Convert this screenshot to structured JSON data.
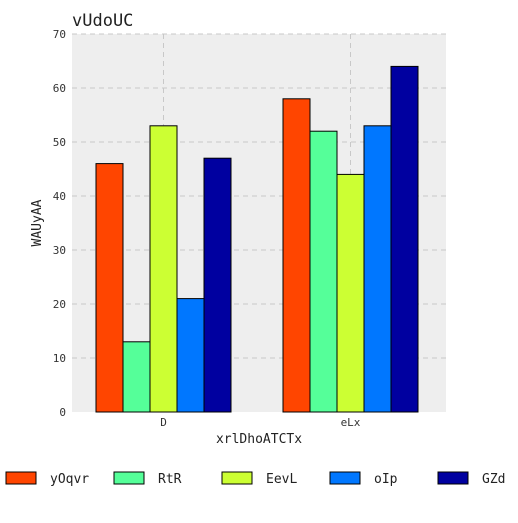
{
  "chart_data": {
    "type": "bar",
    "title": "vUdoUC",
    "xlabel": "xrlDhoATCTx",
    "ylabel": "WAUyAA",
    "categories": [
      "D",
      "eLx"
    ],
    "ylim": [
      0,
      70
    ],
    "yticks": [
      0,
      10,
      20,
      30,
      40,
      50,
      60,
      70
    ],
    "grid": true,
    "legend_position": "bottom",
    "series": [
      {
        "name": "yOqvr",
        "color": "#ff4500",
        "values": [
          46,
          58
        ]
      },
      {
        "name": "RtR",
        "color": "#55ff99",
        "values": [
          13,
          52
        ]
      },
      {
        "name": "EevL",
        "color": "#ccff33",
        "values": [
          53,
          44
        ]
      },
      {
        "name": "oIp",
        "color": "#0077ff",
        "values": [
          21,
          53
        ]
      },
      {
        "name": "GZd",
        "color": "#0000a0",
        "values": [
          47,
          64
        ]
      }
    ]
  }
}
